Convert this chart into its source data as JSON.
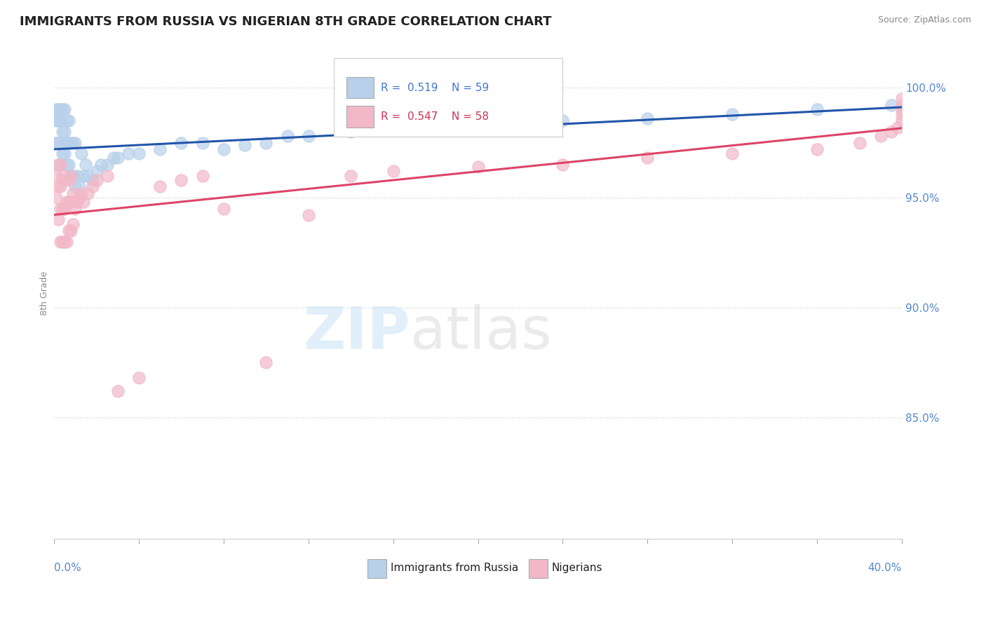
{
  "title": "IMMIGRANTS FROM RUSSIA VS NIGERIAN 8TH GRADE CORRELATION CHART",
  "source": "Source: ZipAtlas.com",
  "ylabel": "8th Grade",
  "ylabel_right_ticks": [
    "100.0%",
    "95.0%",
    "90.0%",
    "85.0%"
  ],
  "ylabel_right_vals": [
    1.0,
    0.95,
    0.9,
    0.85
  ],
  "xmin": 0.0,
  "xmax": 0.4,
  "ymin": 0.795,
  "ymax": 1.018,
  "legend_R_blue": "0.519",
  "legend_N_blue": "59",
  "legend_R_pink": "0.547",
  "legend_N_pink": "58",
  "blue_color": "#b8d0ea",
  "pink_color": "#f2b8c8",
  "blue_line_color": "#2255aa",
  "pink_line_color": "#dd4466",
  "russia_x": [
    0.001,
    0.001,
    0.001,
    0.002,
    0.002,
    0.002,
    0.002,
    0.003,
    0.003,
    0.003,
    0.004,
    0.004,
    0.004,
    0.005,
    0.005,
    0.005,
    0.006,
    0.006,
    0.006,
    0.007,
    0.007,
    0.007,
    0.008,
    0.008,
    0.009,
    0.009,
    0.01,
    0.01,
    0.011,
    0.012,
    0.013,
    0.014,
    0.015,
    0.016,
    0.018,
    0.02,
    0.022,
    0.025,
    0.028,
    0.03,
    0.035,
    0.04,
    0.05,
    0.06,
    0.07,
    0.08,
    0.09,
    0.1,
    0.11,
    0.12,
    0.14,
    0.16,
    0.18,
    0.2,
    0.24,
    0.28,
    0.32,
    0.36,
    0.395
  ],
  "russia_y": [
    0.975,
    0.985,
    0.99,
    0.965,
    0.975,
    0.985,
    0.99,
    0.975,
    0.985,
    0.99,
    0.97,
    0.98,
    0.99,
    0.97,
    0.98,
    0.99,
    0.965,
    0.975,
    0.985,
    0.965,
    0.975,
    0.985,
    0.96,
    0.975,
    0.96,
    0.975,
    0.955,
    0.975,
    0.96,
    0.955,
    0.97,
    0.96,
    0.965,
    0.96,
    0.958,
    0.962,
    0.965,
    0.965,
    0.968,
    0.968,
    0.97,
    0.97,
    0.972,
    0.975,
    0.975,
    0.972,
    0.974,
    0.975,
    0.978,
    0.978,
    0.98,
    0.982,
    0.982,
    0.984,
    0.985,
    0.986,
    0.988,
    0.99,
    0.992
  ],
  "nigeria_x": [
    0.001,
    0.001,
    0.002,
    0.002,
    0.002,
    0.003,
    0.003,
    0.003,
    0.003,
    0.004,
    0.004,
    0.004,
    0.005,
    0.005,
    0.005,
    0.006,
    0.006,
    0.007,
    0.007,
    0.007,
    0.008,
    0.008,
    0.008,
    0.009,
    0.009,
    0.01,
    0.011,
    0.012,
    0.013,
    0.014,
    0.016,
    0.018,
    0.02,
    0.025,
    0.03,
    0.04,
    0.05,
    0.06,
    0.07,
    0.08,
    0.1,
    0.12,
    0.14,
    0.16,
    0.2,
    0.24,
    0.28,
    0.32,
    0.36,
    0.38,
    0.39,
    0.395,
    0.398,
    0.4,
    0.4,
    0.4,
    0.4,
    0.4
  ],
  "nigeria_y": [
    0.95,
    0.96,
    0.94,
    0.955,
    0.965,
    0.93,
    0.945,
    0.955,
    0.965,
    0.93,
    0.945,
    0.96,
    0.93,
    0.945,
    0.958,
    0.93,
    0.948,
    0.935,
    0.948,
    0.958,
    0.935,
    0.948,
    0.96,
    0.938,
    0.952,
    0.945,
    0.948,
    0.95,
    0.952,
    0.948,
    0.952,
    0.955,
    0.958,
    0.96,
    0.862,
    0.868,
    0.955,
    0.958,
    0.96,
    0.945,
    0.875,
    0.942,
    0.96,
    0.962,
    0.964,
    0.965,
    0.968,
    0.97,
    0.972,
    0.975,
    0.978,
    0.98,
    0.982,
    0.985,
    0.988,
    0.99,
    0.992,
    0.995
  ]
}
